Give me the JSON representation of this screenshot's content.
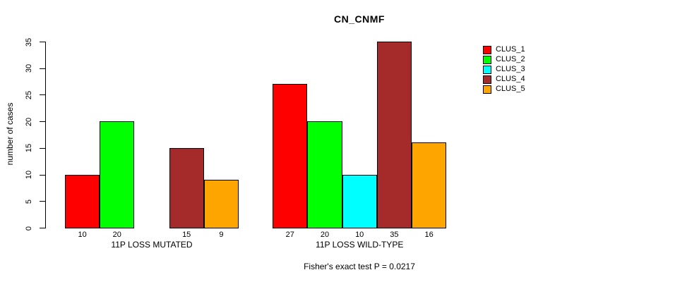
{
  "chart_data": {
    "type": "bar",
    "title": "CN_CNMF",
    "xlabel": "",
    "ylabel": "number of cases",
    "ylim": [
      0,
      35
    ],
    "yticks": [
      0,
      5,
      10,
      15,
      20,
      25,
      30,
      35
    ],
    "grid": false,
    "legend_position": "right",
    "bar_value_labels_shown": true,
    "zero_bars_hidden": true,
    "categories": [
      "11P LOSS MUTATED",
      "11P LOSS WILD-TYPE"
    ],
    "series": [
      {
        "name": "CLUS_1",
        "color": "#ff0000",
        "values": [
          10,
          27
        ]
      },
      {
        "name": "CLUS_2",
        "color": "#00ff00",
        "values": [
          20,
          20
        ]
      },
      {
        "name": "CLUS_3",
        "color": "#00ffff",
        "values": [
          0,
          10
        ]
      },
      {
        "name": "CLUS_4",
        "color": "#a52a2a",
        "values": [
          15,
          35
        ]
      },
      {
        "name": "CLUS_5",
        "color": "#ffa500",
        "values": [
          9,
          16
        ]
      }
    ],
    "annotation": "Fisher's exact test P = 0.0217",
    "colors": {
      "foreground": "#000000",
      "background": "#ffffff"
    }
  }
}
